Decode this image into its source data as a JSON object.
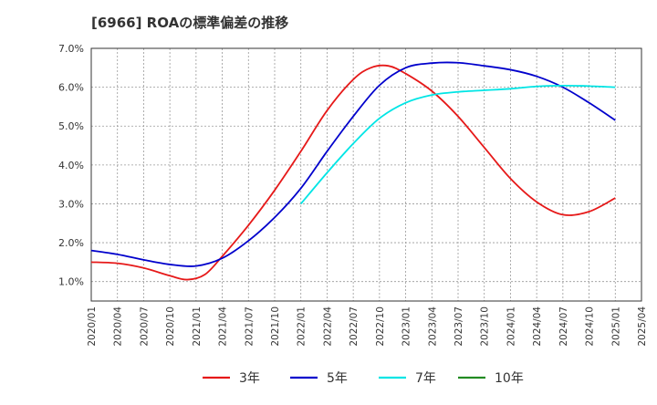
{
  "chart_data": {
    "type": "line",
    "title": "[6966]  ROAの標準偏差の推移",
    "x_tick_labels": [
      "2020/01",
      "2020/04",
      "2020/07",
      "2020/10",
      "2021/01",
      "2021/04",
      "2021/07",
      "2021/10",
      "2022/01",
      "2022/04",
      "2022/07",
      "2022/10",
      "2023/01",
      "2023/04",
      "2023/07",
      "2023/10",
      "2024/01",
      "2024/04",
      "2024/07",
      "2024/10",
      "2025/01",
      "2025/04"
    ],
    "y_tick_labels": [
      "1.0%",
      "2.0%",
      "3.0%",
      "4.0%",
      "5.0%",
      "6.0%",
      "7.0%"
    ],
    "ylim": [
      0.5,
      7.0
    ],
    "grid": true,
    "legend_position": "bottom",
    "series": [
      {
        "name": "3年",
        "color": "#e61919",
        "x": [
          "2020/01",
          "2020/04",
          "2020/07",
          "2020/10",
          "2020/12",
          "2021/02",
          "2021/04",
          "2021/07",
          "2021/10",
          "2022/01",
          "2022/04",
          "2022/07",
          "2022/09",
          "2022/11",
          "2023/01",
          "2023/04",
          "2023/07",
          "2023/10",
          "2024/01",
          "2024/04",
          "2024/07",
          "2024/10",
          "2025/01"
        ],
        "values": [
          1.5,
          1.47,
          1.35,
          1.15,
          1.05,
          1.18,
          1.65,
          2.45,
          3.35,
          4.35,
          5.4,
          6.2,
          6.5,
          6.55,
          6.35,
          5.9,
          5.25,
          4.45,
          3.65,
          3.05,
          2.72,
          2.8,
          3.15
        ]
      },
      {
        "name": "5年",
        "color": "#0000cc",
        "x": [
          "2020/01",
          "2020/04",
          "2020/07",
          "2020/10",
          "2021/01",
          "2021/04",
          "2021/07",
          "2021/10",
          "2022/01",
          "2022/04",
          "2022/07",
          "2022/10",
          "2023/01",
          "2023/04",
          "2023/07",
          "2023/10",
          "2024/01",
          "2024/04",
          "2024/07",
          "2024/10",
          "2025/01"
        ],
        "values": [
          1.8,
          1.7,
          1.56,
          1.44,
          1.4,
          1.6,
          2.05,
          2.65,
          3.4,
          4.35,
          5.25,
          6.05,
          6.5,
          6.62,
          6.63,
          6.55,
          6.45,
          6.28,
          6.0,
          5.6,
          5.15
        ]
      },
      {
        "name": "7年",
        "color": "#00e5e5",
        "x": [
          "2022/01",
          "2022/04",
          "2022/07",
          "2022/10",
          "2023/01",
          "2023/04",
          "2023/07",
          "2023/10",
          "2024/01",
          "2024/04",
          "2024/07",
          "2024/10",
          "2025/01"
        ],
        "values": [
          3.0,
          3.8,
          4.55,
          5.2,
          5.6,
          5.8,
          5.88,
          5.92,
          5.96,
          6.02,
          6.04,
          6.03,
          6.0
        ]
      },
      {
        "name": "10年",
        "color": "#228b22",
        "x": [],
        "values": []
      }
    ]
  }
}
